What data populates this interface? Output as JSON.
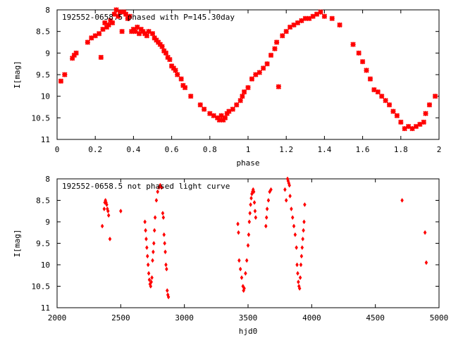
{
  "chart_data": [
    {
      "type": "scatter",
      "title": "192552-0658.5 phased with P=145.30day",
      "xlabel": "phase",
      "ylabel": "I[mag]",
      "xlim": [
        0,
        2
      ],
      "ylim": [
        8,
        11
      ],
      "y_inverted": true,
      "grid": false,
      "marker": "cross",
      "color": "#ff0000",
      "x_ticks": [
        0,
        0.2,
        0.4,
        0.6,
        0.8,
        1,
        1.2,
        1.4,
        1.6,
        1.8,
        2
      ],
      "x_tick_labels": [
        "0",
        "0.2",
        "0.4",
        "0.6",
        "0.8",
        "1",
        "1.2",
        "1.4",
        "1.6",
        "1.8",
        "2"
      ],
      "y_ticks": [
        8,
        8.5,
        9,
        9.5,
        10,
        10.5,
        11
      ],
      "y_tick_labels": [
        "8",
        "8.5",
        "9",
        "9.5",
        "10",
        "10.5",
        "11"
      ],
      "series": [
        {
          "points": [
            [
              0.02,
              9.65
            ],
            [
              0.04,
              9.5
            ],
            [
              0.08,
              9.12
            ],
            [
              0.09,
              9.05
            ],
            [
              0.1,
              9.0
            ],
            [
              0.16,
              8.75
            ],
            [
              0.18,
              8.65
            ],
            [
              0.2,
              8.6
            ],
            [
              0.22,
              8.55
            ],
            [
              0.23,
              9.1
            ],
            [
              0.24,
              8.45
            ],
            [
              0.25,
              8.3
            ],
            [
              0.26,
              8.4
            ],
            [
              0.27,
              8.35
            ],
            [
              0.28,
              8.25
            ],
            [
              0.29,
              8.3
            ],
            [
              0.3,
              8.1
            ],
            [
              0.31,
              8.0
            ],
            [
              0.32,
              8.15
            ],
            [
              0.33,
              8.05
            ],
            [
              0.34,
              8.5
            ],
            [
              0.35,
              8.05
            ],
            [
              0.36,
              8.1
            ],
            [
              0.37,
              8.2
            ],
            [
              0.38,
              8.15
            ],
            [
              0.39,
              8.5
            ],
            [
              0.4,
              8.45
            ],
            [
              0.41,
              8.5
            ],
            [
              0.42,
              8.4
            ],
            [
              0.43,
              8.55
            ],
            [
              0.44,
              8.45
            ],
            [
              0.45,
              8.5
            ],
            [
              0.46,
              8.55
            ],
            [
              0.47,
              8.6
            ],
            [
              0.48,
              8.5
            ],
            [
              0.5,
              8.55
            ],
            [
              0.51,
              8.65
            ],
            [
              0.52,
              8.7
            ],
            [
              0.53,
              8.75
            ],
            [
              0.54,
              8.8
            ],
            [
              0.55,
              8.85
            ],
            [
              0.56,
              8.95
            ],
            [
              0.57,
              9.0
            ],
            [
              0.58,
              9.1
            ],
            [
              0.59,
              9.15
            ],
            [
              0.6,
              9.3
            ],
            [
              0.61,
              9.35
            ],
            [
              0.62,
              9.4
            ],
            [
              0.63,
              9.5
            ],
            [
              0.65,
              9.6
            ],
            [
              0.66,
              9.75
            ],
            [
              0.67,
              9.8
            ],
            [
              0.7,
              10.0
            ],
            [
              0.75,
              10.2
            ],
            [
              0.77,
              10.3
            ],
            [
              0.8,
              10.4
            ],
            [
              0.82,
              10.45
            ],
            [
              0.84,
              10.5
            ],
            [
              0.85,
              10.55
            ],
            [
              0.86,
              10.45
            ],
            [
              0.87,
              10.55
            ],
            [
              0.88,
              10.5
            ],
            [
              0.89,
              10.4
            ],
            [
              0.9,
              10.35
            ],
            [
              0.92,
              10.3
            ],
            [
              0.94,
              10.2
            ],
            [
              0.96,
              10.1
            ],
            [
              0.97,
              10.0
            ],
            [
              0.98,
              9.9
            ],
            [
              1.0,
              9.8
            ],
            [
              1.02,
              9.6
            ],
            [
              1.04,
              9.5
            ],
            [
              1.06,
              9.45
            ],
            [
              1.08,
              9.35
            ],
            [
              1.1,
              9.25
            ],
            [
              1.12,
              9.05
            ],
            [
              1.14,
              8.9
            ],
            [
              1.15,
              8.75
            ],
            [
              1.16,
              9.78
            ],
            [
              1.18,
              8.6
            ],
            [
              1.2,
              8.5
            ],
            [
              1.22,
              8.4
            ],
            [
              1.24,
              8.35
            ],
            [
              1.26,
              8.3
            ],
            [
              1.28,
              8.25
            ],
            [
              1.3,
              8.2
            ],
            [
              1.32,
              8.2
            ],
            [
              1.34,
              8.15
            ],
            [
              1.36,
              8.1
            ],
            [
              1.38,
              8.05
            ],
            [
              1.4,
              8.15
            ],
            [
              1.44,
              8.2
            ],
            [
              1.48,
              8.35
            ],
            [
              1.55,
              8.8
            ],
            [
              1.58,
              9.0
            ],
            [
              1.6,
              9.2
            ],
            [
              1.62,
              9.4
            ],
            [
              1.64,
              9.6
            ],
            [
              1.66,
              9.85
            ],
            [
              1.68,
              9.9
            ],
            [
              1.7,
              10.0
            ],
            [
              1.72,
              10.1
            ],
            [
              1.74,
              10.2
            ],
            [
              1.76,
              10.35
            ],
            [
              1.78,
              10.45
            ],
            [
              1.8,
              10.6
            ],
            [
              1.82,
              10.75
            ],
            [
              1.84,
              10.7
            ],
            [
              1.86,
              10.75
            ],
            [
              1.88,
              10.7
            ],
            [
              1.9,
              10.65
            ],
            [
              1.92,
              10.6
            ],
            [
              1.93,
              10.4
            ],
            [
              1.95,
              10.2
            ],
            [
              1.98,
              10.0
            ]
          ]
        }
      ]
    },
    {
      "type": "scatter",
      "title": "192552-0658.5 not phased light curve",
      "xlabel": "hjd0",
      "ylabel": "I[mag]",
      "xlim": [
        2000,
        5000
      ],
      "ylim": [
        8,
        11
      ],
      "y_inverted": true,
      "grid": false,
      "marker": "diamond",
      "color": "#ff0000",
      "x_ticks": [
        2000,
        2500,
        3000,
        3500,
        4000,
        4500,
        5000
      ],
      "x_tick_labels": [
        "2000",
        "2500",
        "3000",
        "3500",
        "4000",
        "4500",
        "5000"
      ],
      "y_ticks": [
        8,
        8.5,
        9,
        9.5,
        10,
        10.5,
        11
      ],
      "y_tick_labels": [
        "8",
        "8.5",
        "9",
        "9.5",
        "10",
        "10.5",
        "11"
      ],
      "series": [
        {
          "points": [
            [
              2355,
              9.1
            ],
            [
              2370,
              8.7
            ],
            [
              2375,
              8.55
            ],
            [
              2380,
              8.5
            ],
            [
              2385,
              8.55
            ],
            [
              2390,
              8.6
            ],
            [
              2395,
              8.7
            ],
            [
              2400,
              8.75
            ],
            [
              2405,
              8.85
            ],
            [
              2415,
              9.4
            ],
            [
              2500,
              8.75
            ],
            [
              2690,
              9.0
            ],
            [
              2695,
              9.2
            ],
            [
              2700,
              9.4
            ],
            [
              2705,
              9.6
            ],
            [
              2710,
              9.8
            ],
            [
              2715,
              10.0
            ],
            [
              2720,
              10.2
            ],
            [
              2725,
              10.35
            ],
            [
              2730,
              10.45
            ],
            [
              2735,
              10.5
            ],
            [
              2740,
              10.4
            ],
            [
              2745,
              10.3
            ],
            [
              2750,
              9.9
            ],
            [
              2755,
              9.7
            ],
            [
              2760,
              9.5
            ],
            [
              2765,
              9.2
            ],
            [
              2770,
              8.9
            ],
            [
              2780,
              8.5
            ],
            [
              2790,
              8.3
            ],
            [
              2800,
              8.2
            ],
            [
              2810,
              8.15
            ],
            [
              2820,
              8.2
            ],
            [
              2830,
              8.8
            ],
            [
              2835,
              8.9
            ],
            [
              2840,
              9.3
            ],
            [
              2845,
              9.5
            ],
            [
              2850,
              9.7
            ],
            [
              2855,
              10.0
            ],
            [
              2860,
              10.1
            ],
            [
              2865,
              10.6
            ],
            [
              2870,
              10.7
            ],
            [
              2875,
              10.75
            ],
            [
              3420,
              9.05
            ],
            [
              3425,
              9.25
            ],
            [
              3430,
              9.9
            ],
            [
              3440,
              10.1
            ],
            [
              3450,
              10.3
            ],
            [
              3460,
              10.5
            ],
            [
              3465,
              10.6
            ],
            [
              3470,
              10.55
            ],
            [
              3480,
              10.2
            ],
            [
              3490,
              9.9
            ],
            [
              3500,
              9.55
            ],
            [
              3505,
              9.3
            ],
            [
              3510,
              9.0
            ],
            [
              3515,
              8.8
            ],
            [
              3520,
              8.6
            ],
            [
              3525,
              8.45
            ],
            [
              3530,
              8.35
            ],
            [
              3535,
              8.3
            ],
            [
              3540,
              8.25
            ],
            [
              3545,
              8.3
            ],
            [
              3550,
              8.55
            ],
            [
              3555,
              8.75
            ],
            [
              3560,
              8.9
            ],
            [
              3640,
              9.1
            ],
            [
              3645,
              8.9
            ],
            [
              3650,
              8.7
            ],
            [
              3660,
              8.5
            ],
            [
              3670,
              8.3
            ],
            [
              3680,
              8.25
            ],
            [
              3790,
              8.25
            ],
            [
              3800,
              8.5
            ],
            [
              3810,
              8.0
            ],
            [
              3815,
              8.05
            ],
            [
              3820,
              8.1
            ],
            [
              3825,
              8.15
            ],
            [
              3830,
              8.4
            ],
            [
              3840,
              8.7
            ],
            [
              3850,
              8.9
            ],
            [
              3860,
              9.1
            ],
            [
              3870,
              9.3
            ],
            [
              3880,
              9.6
            ],
            [
              3885,
              10.0
            ],
            [
              3890,
              10.2
            ],
            [
              3895,
              10.4
            ],
            [
              3900,
              10.5
            ],
            [
              3905,
              10.55
            ],
            [
              3910,
              10.3
            ],
            [
              3915,
              10.0
            ],
            [
              3920,
              9.8
            ],
            [
              3925,
              9.6
            ],
            [
              3930,
              9.4
            ],
            [
              3935,
              9.2
            ],
            [
              3940,
              9.0
            ],
            [
              3945,
              8.6
            ],
            [
              4710,
              8.5
            ],
            [
              4890,
              9.25
            ],
            [
              4900,
              9.95
            ]
          ]
        }
      ]
    }
  ]
}
